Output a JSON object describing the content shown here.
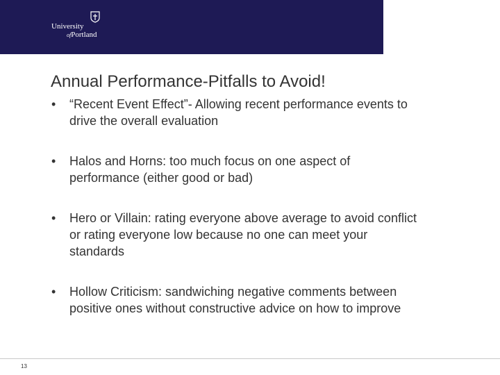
{
  "header": {
    "logo_line1": "University",
    "logo_of": "of",
    "logo_line2": "Portland",
    "band_color": "#1e1a55"
  },
  "slide": {
    "title": "Annual Performance-Pitfalls to Avoid!",
    "bullet_symbol": "•",
    "bullets": [
      {
        "text": "“Recent Event Effect”- Allowing recent performance events to drive the overall evaluation"
      },
      {
        "text": "Halos and Horns: too much focus on one aspect of performance (either good or bad)"
      },
      {
        "text": "Hero or Villain: rating everyone above average to avoid conflict or rating everyone low because no one can meet your standards"
      },
      {
        "text": "Hollow Criticism: sandwiching negative comments between positive ones without constructive advice on how to improve"
      }
    ]
  },
  "footer": {
    "page_number": "13"
  }
}
